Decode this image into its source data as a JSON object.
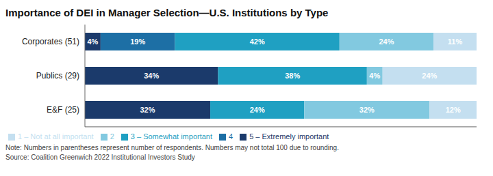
{
  "chart_data": {
    "type": "bar",
    "orientation": "horizontal",
    "stacked": true,
    "title": "Importance of DEI in Manager Selection—U.S. Institutions by Type",
    "categories": [
      "Corporates (51)",
      "Publics (29)",
      "E&F (25)"
    ],
    "series": [
      {
        "name": "5 – Extremely important",
        "color": "#1b3a6b",
        "values": [
          4,
          34,
          32
        ],
        "value_labels": [
          "4%",
          "34%",
          "32%"
        ]
      },
      {
        "name": "4",
        "color": "#1d6fa5",
        "values": [
          19,
          0,
          0
        ],
        "value_labels": [
          "19%",
          null,
          null
        ]
      },
      {
        "name": "3 – Somewhat important",
        "color": "#1fa0c2",
        "values": [
          42,
          38,
          24
        ],
        "value_labels": [
          "42%",
          "38%",
          "24%"
        ]
      },
      {
        "name": "2",
        "color": "#82c9e0",
        "values": [
          24,
          4,
          32
        ],
        "value_labels": [
          "24%",
          "4%",
          "32%"
        ]
      },
      {
        "name": "1 – Not at all important",
        "color": "#c4dff0",
        "values": [
          11,
          24,
          12
        ],
        "value_labels": [
          "11%",
          "24%",
          "12%"
        ]
      }
    ],
    "xlim": [
      0,
      100
    ],
    "data_labels": true,
    "tick_labels": "y",
    "grid": false,
    "legend": "bottom",
    "annotations": [
      "Note: Numbers in parentheses represent number of respondents. Numbers may not total 100 due to rounding.",
      "Source: Coalition Greenwich 2022 Institutional Investors Study"
    ]
  }
}
